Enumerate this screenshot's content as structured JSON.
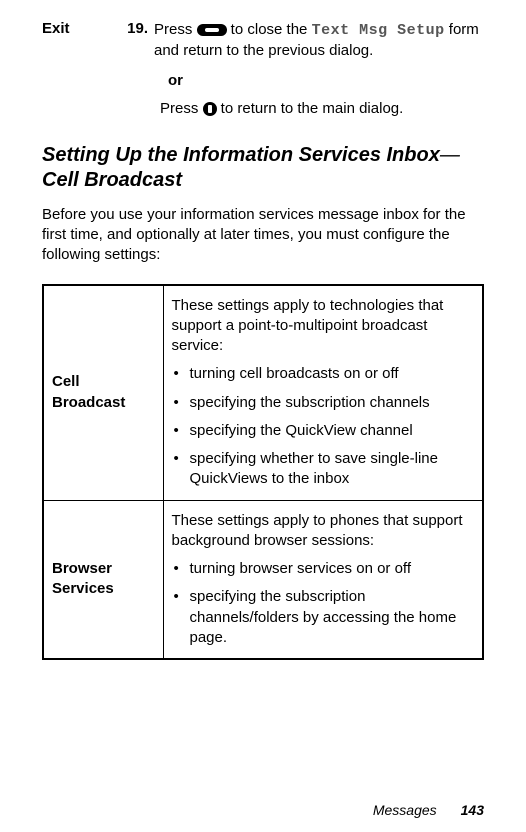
{
  "step": {
    "label": "Exit",
    "number": "19.",
    "line1_before": "Press ",
    "line1_after": " to close the ",
    "form_name": "Text Msg Setup",
    "line1_tail": " form and return to the previous dialog.",
    "or": "or",
    "line2_before": "Press ",
    "line2_after": " to return to the main dialog."
  },
  "heading_a": "Setting Up the Information Services Inbox",
  "heading_dash": "—",
  "heading_b": "Cell Broadcast",
  "intro": "Before you use your information services message inbox for the first time, and optionally at later times, you must configure the following settings:",
  "table": {
    "rows": [
      {
        "name": "Cell Broadcast",
        "desc_intro": "These settings apply to technologies that support a point-to-multipoint broadcast service:",
        "bullets": [
          "turning cell broadcasts on or off",
          "specifying the subscription channels",
          "specifying the QuickView channel",
          "specifying whether to save single-line QuickViews to the inbox"
        ]
      },
      {
        "name": "Browser Services",
        "desc_intro": "These settings apply to phones that support background browser sessions:",
        "bullets": [
          "turning browser services on or off",
          "specifying the subscription channels/folders by accessing the home page."
        ]
      }
    ]
  },
  "footer": {
    "section": "Messages",
    "page": "143"
  }
}
